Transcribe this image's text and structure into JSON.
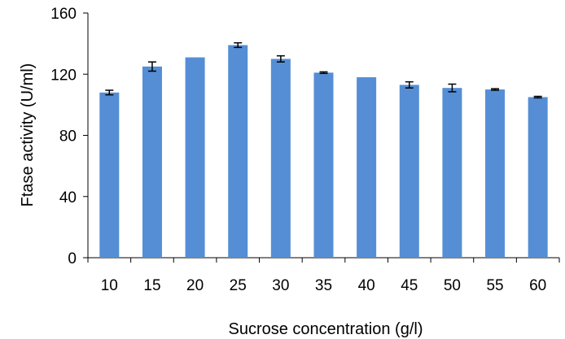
{
  "chart_data": {
    "type": "bar",
    "categories": [
      "10",
      "15",
      "20",
      "25",
      "30",
      "35",
      "40",
      "45",
      "50",
      "55",
      "60"
    ],
    "values": [
      108,
      125,
      131,
      139,
      130,
      121,
      118,
      113,
      111,
      110,
      105
    ],
    "error_bars": [
      1.5,
      3,
      0,
      1.5,
      2,
      0.5,
      0,
      2,
      2.5,
      0.5,
      0.5
    ],
    "xlabel": "Sucrose concentration (g/l)",
    "ylabel": "Ftase activity (U/ml)",
    "ylim": [
      0,
      160
    ],
    "yticks": [
      "0",
      "40",
      "80",
      "120",
      "160"
    ],
    "grid": false,
    "legend": "none",
    "colors": {
      "bar": "#558ed5",
      "error_bar": "#000000",
      "axis": "#000000"
    }
  }
}
